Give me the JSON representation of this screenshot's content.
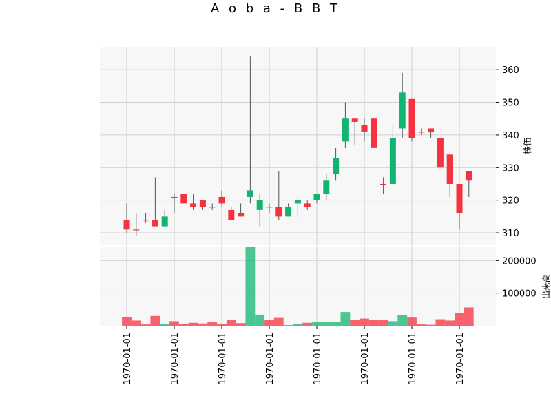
{
  "chart_data": {
    "type": "candlestick",
    "title": "A o b a - B B T",
    "ylabel_price": "株価",
    "ylabel_volume": "出来高",
    "x_tick_labels": [
      "1970-01-01",
      "1970-01-01",
      "1970-01-01",
      "1970-01-01",
      "1970-01-01",
      "1970-01-01",
      "1970-01-01",
      "1970-01-01"
    ],
    "price_ticks": [
      310,
      320,
      330,
      340,
      350,
      360
    ],
    "price_ylim": [
      306,
      367
    ],
    "volume_ticks": [
      100000,
      200000
    ],
    "volume_ylim": [
      0,
      245000
    ],
    "volume_tick_labels": [
      "100000",
      "200000"
    ],
    "candles": [
      {
        "open": 311,
        "high": 319,
        "low": 310,
        "close": 314,
        "volume": 27000
      },
      {
        "open": 311,
        "high": 316,
        "low": 309,
        "close": 311,
        "volume": 16000
      },
      {
        "open": 314,
        "high": 316,
        "low": 313,
        "close": 314,
        "volume": 4000
      },
      {
        "open": 312,
        "high": 327,
        "low": 312,
        "close": 314,
        "volume": 30000
      },
      {
        "open": 312,
        "high": 317,
        "low": 312,
        "close": 315,
        "volume": 6000
      },
      {
        "open": 321,
        "high": 322,
        "low": 316,
        "close": 321,
        "volume": 14000
      },
      {
        "open": 319,
        "high": 322,
        "low": 319,
        "close": 322,
        "volume": 5000
      },
      {
        "open": 318,
        "high": 322,
        "low": 317,
        "close": 319,
        "volume": 9000
      },
      {
        "open": 318,
        "high": 320,
        "low": 317,
        "close": 320,
        "volume": 7000
      },
      {
        "open": 318,
        "high": 319,
        "low": 317,
        "close": 318,
        "volume": 11000
      },
      {
        "open": 319,
        "high": 323,
        "low": 318,
        "close": 321,
        "volume": 6000
      },
      {
        "open": 314,
        "high": 318,
        "low": 314,
        "close": 317,
        "volume": 18000
      },
      {
        "open": 316,
        "high": 319,
        "low": 315,
        "close": 315,
        "volume": 8000
      },
      {
        "open": 321,
        "high": 364,
        "low": 319,
        "close": 323,
        "volume": 243000
      },
      {
        "open": 320,
        "high": 322,
        "low": 312,
        "close": 317,
        "volume": 34000
      },
      {
        "open": 318,
        "high": 319,
        "low": 316,
        "close": 318,
        "volume": 17000
      },
      {
        "open": 315,
        "high": 329,
        "low": 314,
        "close": 318,
        "volume": 24000
      },
      {
        "open": 315,
        "high": 319,
        "low": 315,
        "close": 318,
        "volume": 2000
      },
      {
        "open": 319,
        "high": 321,
        "low": 315,
        "close": 320,
        "volume": 5000
      },
      {
        "open": 318,
        "high": 320,
        "low": 317,
        "close": 319,
        "volume": 9000
      },
      {
        "open": 320,
        "high": 322,
        "low": 319,
        "close": 322,
        "volume": 11000
      },
      {
        "open": 322,
        "high": 328,
        "low": 320,
        "close": 326,
        "volume": 12000
      },
      {
        "open": 328,
        "high": 336,
        "low": 326,
        "close": 333,
        "volume": 12000
      },
      {
        "open": 338,
        "high": 350,
        "low": 336,
        "close": 345,
        "volume": 42000
      },
      {
        "open": 344,
        "high": 345,
        "low": 337,
        "close": 345,
        "volume": 18000
      },
      {
        "open": 341,
        "high": 345,
        "low": 338,
        "close": 343,
        "volume": 22000
      },
      {
        "open": 336,
        "high": 345,
        "low": 336,
        "close": 345,
        "volume": 17000
      },
      {
        "open": 325,
        "high": 327,
        "low": 322,
        "close": 325,
        "volume": 17000
      },
      {
        "open": 325,
        "high": 343,
        "low": 325,
        "close": 339,
        "volume": 14000
      },
      {
        "open": 342,
        "high": 359,
        "low": 339,
        "close": 353,
        "volume": 32000
      },
      {
        "open": 339,
        "high": 351,
        "low": 338,
        "close": 351,
        "volume": 25000
      },
      {
        "open": 341,
        "high": 342,
        "low": 340,
        "close": 341,
        "volume": 4000
      },
      {
        "open": 341,
        "high": 342,
        "low": 339,
        "close": 342,
        "volume": 3000
      },
      {
        "open": 330,
        "high": 339,
        "low": 330,
        "close": 339,
        "volume": 20000
      },
      {
        "open": 325,
        "high": 334,
        "low": 321,
        "close": 334,
        "volume": 16000
      },
      {
        "open": 316,
        "high": 325,
        "low": 311,
        "close": 325,
        "volume": 40000
      },
      {
        "open": 326,
        "high": 329,
        "low": 321,
        "close": 329,
        "volume": 56000
      }
    ],
    "candle_colors_override": {
      "green_indices": [
        4,
        13,
        14,
        17,
        18,
        20,
        21,
        22,
        23,
        28,
        29
      ]
    },
    "up_color": "#12b570",
    "down_color": "#f5323f",
    "grid": true,
    "plot_background": "#f7f7f7"
  }
}
